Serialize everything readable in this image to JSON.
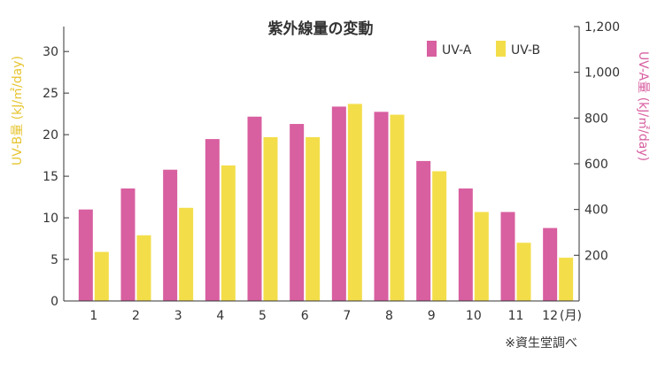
{
  "chart_data": {
    "type": "bar",
    "title": "紫外線量の変動",
    "categories": [
      "1",
      "2",
      "3",
      "4",
      "5",
      "6",
      "7",
      "8",
      "9",
      "10",
      "11",
      "12"
    ],
    "x_unit": "(月)",
    "series": [
      {
        "name": "UV-A",
        "axis": "right",
        "color": "#d85fa0",
        "values": [
          400,
          492,
          574,
          708,
          806,
          774,
          850,
          827,
          612,
          492,
          389,
          319
        ]
      },
      {
        "name": "UV-B",
        "axis": "left",
        "color": "#f3de4a",
        "values": [
          5.9,
          7.9,
          11.2,
          16.3,
          19.7,
          19.7,
          23.7,
          22.4,
          15.6,
          10.7,
          7.0,
          5.2
        ]
      }
    ],
    "ylabel_left": "UV-B量 (kJ/㎡/day)",
    "ylabel_right": "UV-A量 (kJ/㎡/day)",
    "ylim_left": [
      0,
      33
    ],
    "ylim_right": [
      0,
      1200
    ],
    "yticks_left": [
      "0",
      "5",
      "10",
      "15",
      "20",
      "25",
      "30"
    ],
    "yticks_right": [
      "200",
      "400",
      "600",
      "800",
      "1,000",
      "1,200"
    ],
    "yticks_left_values": [
      0,
      5,
      10,
      15,
      20,
      25,
      30
    ],
    "yticks_right_values": [
      200,
      400,
      600,
      800,
      1000,
      1200
    ],
    "legend_position": "top-right",
    "grid": false,
    "note": "※資生堂調べ"
  }
}
